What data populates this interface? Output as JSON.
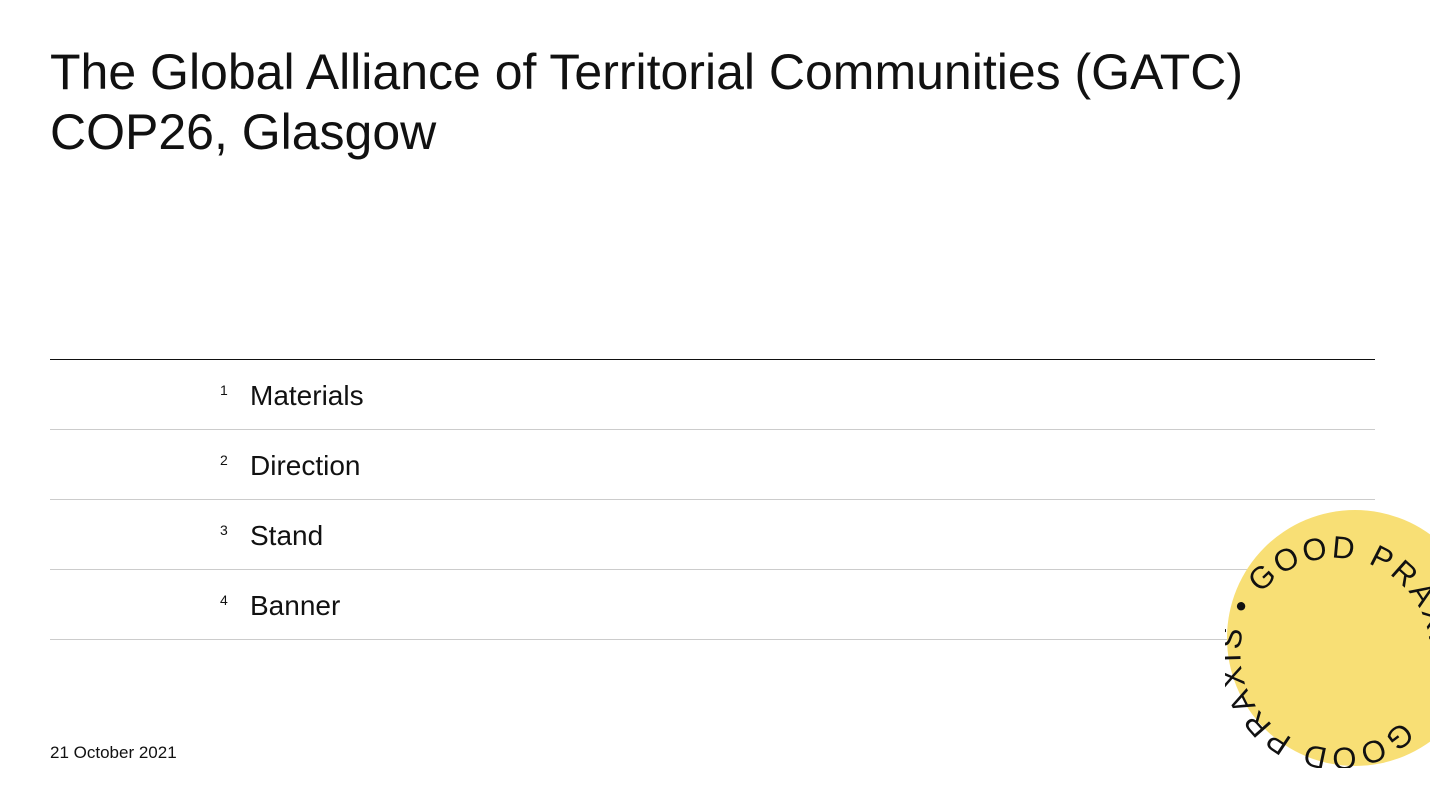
{
  "header": {
    "title_line_1": "The Global Alliance of Territorial Communities (GATC)",
    "title_line_2": "COP26, Glasgow"
  },
  "contents": {
    "items": [
      {
        "number": "1",
        "label": "Materials"
      },
      {
        "number": "2",
        "label": "Direction"
      },
      {
        "number": "3",
        "label": "Stand"
      },
      {
        "number": "4",
        "label": "Banner"
      }
    ]
  },
  "footer": {
    "date": "21 October 2021"
  },
  "badge": {
    "text": "GOOD PRAXIS • GOOD PRAXIS •"
  }
}
